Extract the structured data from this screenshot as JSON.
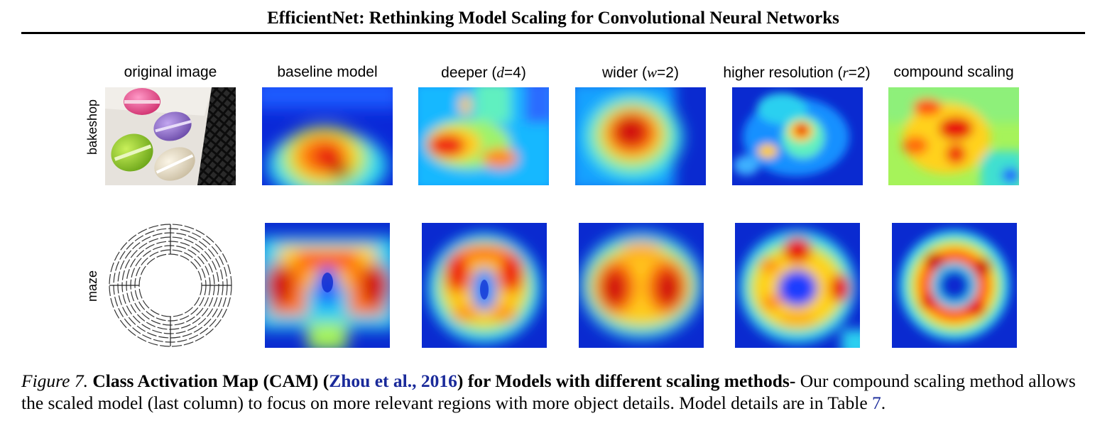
{
  "header": {
    "title": "EfficientNet: Rethinking Model Scaling for Convolutional Neural Networks"
  },
  "columns": [
    {
      "plain": "original image"
    },
    {
      "plain": "baseline model"
    },
    {
      "pre": "deeper (",
      "var": "d",
      "post": "=4)"
    },
    {
      "pre": "wider (",
      "var": "w",
      "post": "=2)"
    },
    {
      "pre": "higher resolution (",
      "var": "r",
      "post": "=2)"
    },
    {
      "plain": "compound scaling"
    }
  ],
  "rows": [
    {
      "label": "bakeshop"
    },
    {
      "label": "maze"
    }
  ],
  "caption": {
    "fig": "Figure 7.",
    "bold1": " Class Activation Map (CAM) (",
    "cite": "Zhou et al., 2016",
    "bold2": ") for Models with different scaling methods-",
    "body": " Our compound scaling method allows the scaled model (last column) to focus on more relevant regions with more object details. Model details are in Table ",
    "table_ref": "7",
    "end": "."
  },
  "colors": {
    "link": "#1a2a9a"
  }
}
